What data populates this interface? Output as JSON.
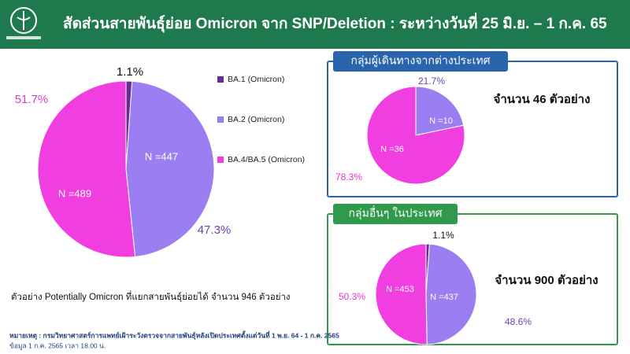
{
  "header": {
    "title": "สัดส่วนสายพันธุ์ย่อย Omicron จาก SNP/Deletion : ระหว่างวันที่ 25 มิ.ย. – 1 ก.ค. 65"
  },
  "chart_data": [
    {
      "type": "pie",
      "categories": [
        "BA.1 (Omicron)",
        "BA.2 (Omicron)",
        "BA.4/BA.5 (Omicron)"
      ],
      "values": [
        1.1,
        47.3,
        51.7
      ],
      "value_labels": [
        "1.1%",
        "47.3%",
        "51.7%"
      ],
      "n_labels": [
        null,
        "N =447",
        "N =489"
      ],
      "colors": [
        "#6b2c91",
        "#9b7ff2",
        "#f03ee0"
      ],
      "legend": "right",
      "annotation": "ตัวอย่าง Potentially Omicron ที่แยกสายพันธุ์ย่อยได้ จำนวน 946 ตัวอย่าง"
    },
    {
      "type": "pie",
      "title": "กลุ่มผู้เดินทางจากต่างประเทศ",
      "categories": [
        "BA.2 (Omicron)",
        "BA.4/BA.5 (Omicron)"
      ],
      "values": [
        21.7,
        78.3
      ],
      "value_labels": [
        "21.7%",
        "78.3%"
      ],
      "n_labels": [
        "N =10",
        "N =36"
      ],
      "colors": [
        "#9b7ff2",
        "#f03ee0"
      ],
      "annotation": "จำนวน 46 ตัวอย่าง"
    },
    {
      "type": "pie",
      "title": "กลุ่มอื่นๆ ในประเทศ",
      "categories": [
        "BA.1 (Omicron)",
        "BA.2 (Omicron)",
        "BA.4/BA.5 (Omicron)"
      ],
      "values": [
        1.1,
        48.6,
        50.3
      ],
      "value_labels": [
        "1.1%",
        "48.6%",
        "50.3%"
      ],
      "n_labels": [
        null,
        "N =437",
        "N =453"
      ],
      "colors": [
        "#6b2c91",
        "#9b7ff2",
        "#f03ee0"
      ],
      "annotation": "จำนวน 900 ตัวอย่าง"
    }
  ],
  "notes": {
    "remark": "หมายเหตุ : กรมวิทยาศาสตร์การแพทย์เฝ้าระวังตรวจจากสายพันธุ์หลังเปิดประเทศตั้งแต่วันที่ 1 พ.ย. 64 - 1 ก.ค. 2565",
    "data_date": "ข้อมูล 1 ก.ค. 2565 เวลา 18.00 น."
  }
}
